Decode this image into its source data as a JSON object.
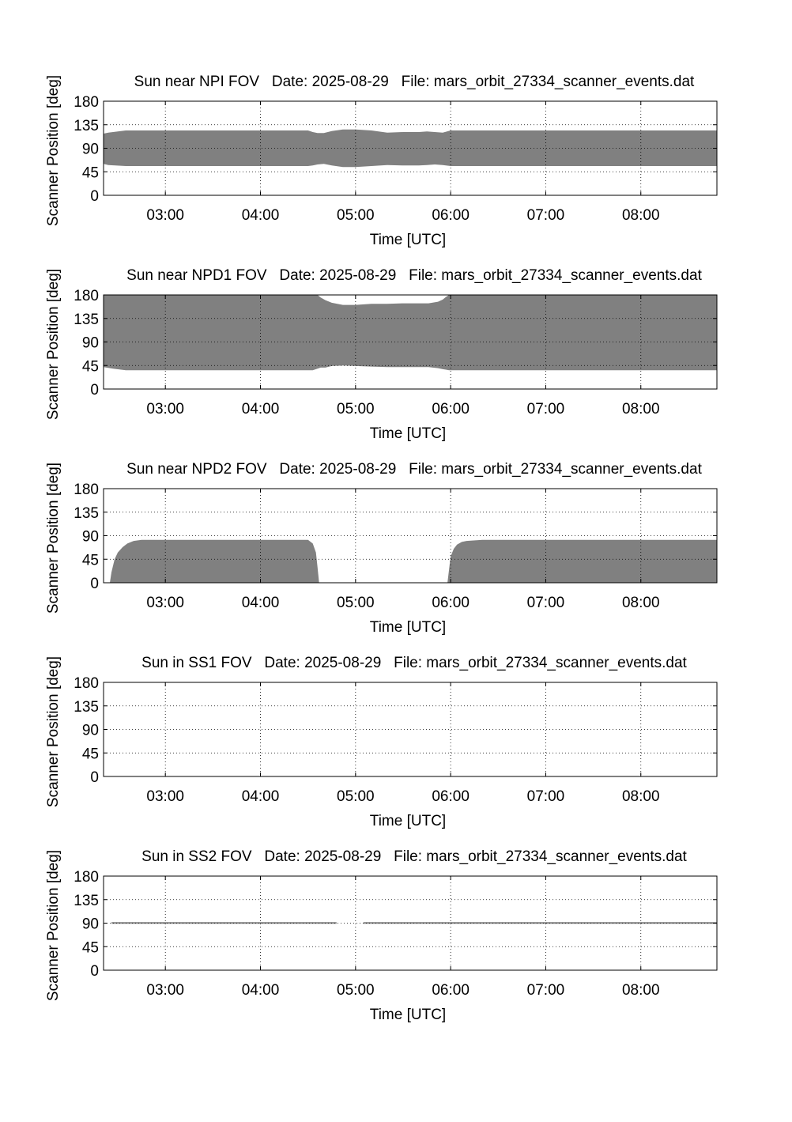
{
  "chart_data": [
    {
      "type": "area",
      "title": "Sun near NPI FOV   Date: 2025-08-29   File: mars_orbit_27334_scanner_events.dat",
      "xlabel": "Time [UTC]",
      "ylabel": "Scanner Position [deg]",
      "xlim": [
        "02:21",
        "08:48"
      ],
      "ylim": [
        0,
        180
      ],
      "xticks": [
        "03:00",
        "04:00",
        "05:00",
        "06:00",
        "07:00",
        "08:00"
      ],
      "yticks": [
        0,
        45,
        90,
        135,
        180
      ],
      "grid": true,
      "fill_color": "#808080",
      "series": [
        {
          "x": [
            "02:21",
            "02:24",
            "02:35",
            "03:00",
            "03:30",
            "04:00",
            "04:30",
            "04:33",
            "04:36",
            "04:40",
            "04:45",
            "04:52",
            "05:00",
            "05:10",
            "05:20",
            "05:30",
            "05:40",
            "05:45",
            "05:50",
            "05:55",
            "06:00",
            "06:30",
            "07:00",
            "08:00",
            "08:48"
          ],
          "low": [
            60,
            58,
            56,
            56,
            56,
            56,
            56,
            57,
            59,
            60,
            57,
            54,
            54,
            56,
            58,
            57,
            57,
            58,
            59,
            58,
            56,
            56,
            56,
            56,
            56
          ],
          "high": [
            118,
            120,
            124,
            124,
            124,
            124,
            124,
            121,
            119,
            119,
            123,
            126,
            126,
            124,
            120,
            121,
            121,
            122,
            121,
            120,
            124,
            124,
            124,
            124,
            124
          ]
        }
      ]
    },
    {
      "type": "area",
      "title": "Sun near NPD1 FOV   Date: 2025-08-29   File: mars_orbit_27334_scanner_events.dat",
      "xlabel": "Time [UTC]",
      "ylabel": "Scanner Position [deg]",
      "xlim": [
        "02:21",
        "08:48"
      ],
      "ylim": [
        0,
        180
      ],
      "xticks": [
        "03:00",
        "04:00",
        "05:00",
        "06:00",
        "07:00",
        "08:00"
      ],
      "yticks": [
        0,
        45,
        90,
        135,
        180
      ],
      "grid": true,
      "fill_color": "#808080",
      "series": [
        {
          "x": [
            "02:21",
            "02:27",
            "02:35",
            "03:00",
            "04:00",
            "04:33",
            "04:36",
            "04:38",
            "04:41",
            "04:45",
            "04:52",
            "05:00",
            "05:10",
            "05:20",
            "05:30",
            "05:40",
            "05:46",
            "05:52",
            "05:55",
            "05:57",
            "05:59",
            "06:00",
            "06:30",
            "07:00",
            "08:00",
            "08:48"
          ],
          "low": [
            42,
            39,
            36,
            36,
            36,
            36,
            39,
            41,
            41,
            44,
            45,
            44,
            43,
            42,
            42,
            42,
            42,
            40,
            38,
            37,
            36,
            36,
            36,
            36,
            36,
            36
          ],
          "high": [
            180,
            180,
            180,
            180,
            180,
            180,
            180,
            175,
            170,
            165,
            161,
            161,
            163,
            163,
            164,
            164,
            164,
            167,
            171,
            176,
            180,
            180,
            180,
            180,
            180,
            180
          ]
        }
      ]
    },
    {
      "type": "area",
      "title": "Sun near NPD2 FOV   Date: 2025-08-29   File: mars_orbit_27334_scanner_events.dat",
      "xlabel": "Time [UTC]",
      "ylabel": "Scanner Position [deg]",
      "xlim": [
        "02:21",
        "08:48"
      ],
      "ylim": [
        0,
        180
      ],
      "xticks": [
        "03:00",
        "04:00",
        "05:00",
        "06:00",
        "07:00",
        "08:00"
      ],
      "yticks": [
        0,
        45,
        90,
        135,
        180
      ],
      "grid": true,
      "fill_color": "#808080",
      "series": [
        {
          "x": [
            "02:25",
            "02:26",
            "02:28",
            "02:30",
            "02:33",
            "02:36",
            "02:40",
            "02:45",
            "03:00",
            "04:00",
            "04:30",
            "04:33",
            "04:35",
            "04:36",
            "04:37"
          ],
          "low": [
            0,
            0,
            0,
            0,
            0,
            0,
            0,
            0,
            0,
            0,
            0,
            0,
            0,
            0,
            0
          ],
          "high": [
            0,
            20,
            45,
            58,
            68,
            75,
            80,
            82,
            82,
            82,
            82,
            75,
            58,
            30,
            0
          ]
        },
        {
          "x": [
            "05:58",
            "05:59",
            "06:00",
            "06:02",
            "06:04",
            "06:07",
            "06:10",
            "06:20",
            "07:00",
            "08:00",
            "08:48"
          ],
          "low": [
            0,
            0,
            0,
            0,
            0,
            0,
            0,
            0,
            0,
            0,
            0
          ],
          "high": [
            0,
            25,
            50,
            65,
            73,
            78,
            80,
            82,
            82,
            82,
            82
          ]
        }
      ]
    },
    {
      "type": "area",
      "title": "Sun in SS1 FOV   Date: 2025-08-29   File: mars_orbit_27334_scanner_events.dat",
      "xlabel": "Time [UTC]",
      "ylabel": "Scanner Position [deg]",
      "xlim": [
        "02:21",
        "08:48"
      ],
      "ylim": [
        0,
        180
      ],
      "xticks": [
        "03:00",
        "04:00",
        "05:00",
        "06:00",
        "07:00",
        "08:00"
      ],
      "yticks": [
        0,
        45,
        90,
        135,
        180
      ],
      "grid": true,
      "fill_color": "#808080",
      "series": []
    },
    {
      "type": "area",
      "title": "Sun in SS2 FOV   Date: 2025-08-29   File: mars_orbit_27334_scanner_events.dat",
      "xlabel": "Time [UTC]",
      "ylabel": "Scanner Position [deg]",
      "xlim": [
        "02:21",
        "08:48"
      ],
      "ylim": [
        0,
        180
      ],
      "xticks": [
        "03:00",
        "04:00",
        "05:00",
        "06:00",
        "07:00",
        "08:00"
      ],
      "yticks": [
        0,
        45,
        90,
        135,
        180
      ],
      "grid": true,
      "fill_color": "#808080",
      "series": [
        {
          "x": [
            "02:26",
            "04:36",
            "04:48"
          ],
          "low": [
            89,
            89,
            89
          ],
          "high": [
            92,
            92,
            92
          ]
        },
        {
          "x": [
            "05:05",
            "05:50",
            "05:55",
            "08:48"
          ],
          "low": [
            89,
            89,
            89,
            89
          ],
          "high": [
            92,
            92,
            92,
            92
          ]
        }
      ]
    }
  ]
}
